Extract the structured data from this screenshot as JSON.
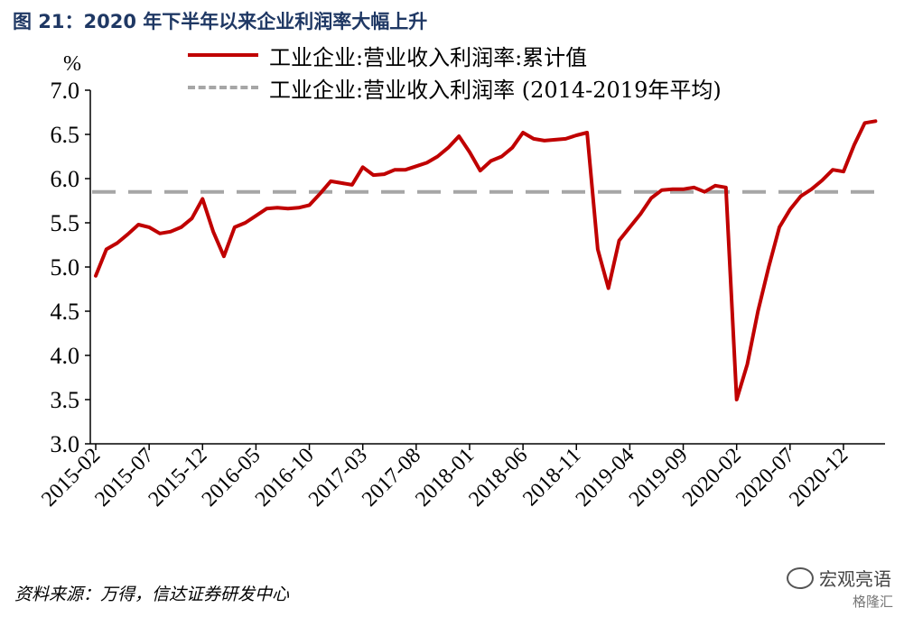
{
  "title": "图 21：2020 年下半年以来企业利润率大幅上升",
  "unit_label": "%",
  "legend": {
    "series1": "工业企业:营业收入利润率:累计值",
    "series2": "工业企业:营业收入利润率 (2014-2019年平均)"
  },
  "source": "资料来源：万得，信达证券研发中心",
  "watermark": {
    "name": "宏观亮语",
    "sub": "格隆汇"
  },
  "colors": {
    "series1": "#c00000",
    "series2": "#a6a6a6",
    "title": "#1f3864"
  },
  "chart_data": {
    "type": "line",
    "ylim": [
      3.0,
      7.0
    ],
    "yticks": [
      "3.0",
      "3.5",
      "4.0",
      "4.5",
      "5.0",
      "5.5",
      "6.0",
      "6.5",
      "7.0"
    ],
    "x_tick_labels": [
      "2015-02",
      "2015-07",
      "2015-12",
      "2016-05",
      "2016-10",
      "2017-03",
      "2017-08",
      "2018-01",
      "2018-06",
      "2018-11",
      "2019-04",
      "2019-09",
      "2020-02",
      "2020-07",
      "2020-12"
    ],
    "series": [
      {
        "name": "工业企业:营业收入利润率:累计值",
        "values": [
          4.9,
          5.2,
          5.27,
          5.37,
          5.48,
          5.45,
          5.38,
          5.4,
          5.45,
          5.55,
          5.77,
          5.4,
          5.12,
          5.45,
          5.5,
          5.58,
          5.66,
          5.67,
          5.66,
          5.67,
          5.7,
          5.83,
          5.97,
          5.95,
          5.93,
          6.13,
          6.04,
          6.05,
          6.1,
          6.1,
          6.14,
          6.18,
          6.25,
          6.35,
          6.48,
          6.3,
          6.09,
          6.2,
          6.25,
          6.35,
          6.52,
          6.45,
          6.43,
          6.44,
          6.45,
          6.49,
          6.52,
          5.2,
          4.76,
          5.3,
          5.45,
          5.6,
          5.78,
          5.87,
          5.88,
          5.88,
          5.9,
          5.85,
          5.92,
          5.9,
          3.5,
          3.9,
          4.5,
          5.0,
          5.45,
          5.65,
          5.8,
          5.88,
          5.98,
          6.1,
          6.08,
          6.38,
          6.63,
          6.65
        ]
      },
      {
        "name": "工业企业:营业收入利润率 (2014-2019年平均)",
        "constant": 5.85
      }
    ]
  }
}
